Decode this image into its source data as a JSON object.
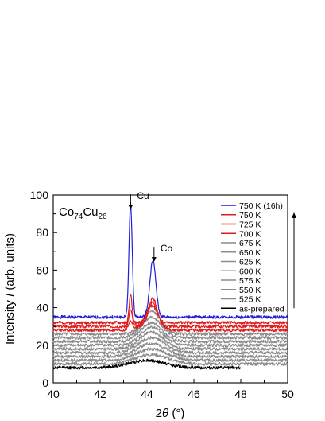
{
  "chart_data": {
    "type": "line",
    "title": "",
    "composition": {
      "el1": "Co",
      "sub1": "74",
      "el2": "Cu",
      "sub2": "26"
    },
    "xlabel_prefix": "2",
    "xlabel_symbol": "θ",
    "xlabel_unit": " (°)",
    "ylabel_prefix": "Intensity ",
    "ylabel_symbol": "I",
    "ylabel_unit": " (arb. units)",
    "xlim": [
      40,
      50
    ],
    "ylim": [
      0,
      100
    ],
    "xticks": [
      40,
      42,
      44,
      46,
      48,
      50
    ],
    "yticks": [
      0,
      20,
      40,
      60,
      80,
      100
    ],
    "grid": false,
    "legend_position": "top-right",
    "legend_arrow": "up",
    "annotations": [
      {
        "text": "Cu",
        "x": 43.3,
        "y": 97
      },
      {
        "text": "Co",
        "x": 44.3,
        "y": 69
      }
    ],
    "series": [
      {
        "name": "750 K (16h)",
        "color": "#1f1fd8",
        "offset": 35,
        "peaks": [
          [
            43.3,
            60,
            0.07
          ],
          [
            44.25,
            30,
            0.13
          ]
        ],
        "x_end": 50,
        "noise_seed": 1
      },
      {
        "name": "750 K",
        "color": "#e01b1b",
        "offset": 32,
        "peaks": [
          [
            43.3,
            15,
            0.06
          ],
          [
            44.25,
            13,
            0.16
          ]
        ],
        "x_end": 50,
        "noise_seed": 2
      },
      {
        "name": "725 K",
        "color": "#e01b1b",
        "offset": 30,
        "peaks": [
          [
            43.3,
            9,
            0.07
          ],
          [
            44.25,
            13,
            0.2
          ]
        ],
        "x_end": 50,
        "noise_seed": 3
      },
      {
        "name": "700 K",
        "color": "#e01b1b",
        "offset": 28,
        "peaks": [
          [
            43.3,
            5,
            0.09
          ],
          [
            44.2,
            13,
            0.28
          ]
        ],
        "x_end": 50,
        "noise_seed": 4
      },
      {
        "name": "675 K",
        "color": "#8c8c8c",
        "offset": 26,
        "peaks": [
          [
            44.2,
            12,
            0.38
          ]
        ],
        "x_end": 50,
        "noise_seed": 5
      },
      {
        "name": "650 K",
        "color": "#8c8c8c",
        "offset": 24,
        "peaks": [
          [
            44.2,
            11,
            0.42
          ]
        ],
        "x_end": 50,
        "noise_seed": 6
      },
      {
        "name": "625 K",
        "color": "#8c8c8c",
        "offset": 22,
        "peaks": [
          [
            44.2,
            10,
            0.45
          ]
        ],
        "x_end": 50,
        "noise_seed": 7
      },
      {
        "name": "600 K",
        "color": "#8c8c8c",
        "offset": 20,
        "peaks": [
          [
            44.2,
            9.5,
            0.48
          ]
        ],
        "x_end": 50,
        "noise_seed": 8
      },
      {
        "name": "575 K",
        "color": "#8c8c8c",
        "offset": 18,
        "peaks": [
          [
            44.2,
            9,
            0.5
          ]
        ],
        "x_end": 50,
        "noise_seed": 9
      },
      {
        "name": "550 K",
        "color": "#8c8c8c",
        "offset": 16,
        "peaks": [
          [
            44.2,
            8,
            0.55
          ]
        ],
        "x_end": 50,
        "noise_seed": 10
      },
      {
        "name": "525 K",
        "color": "#8c8c8c",
        "offset": 14,
        "peaks": [
          [
            44.2,
            7,
            0.6
          ]
        ],
        "x_end": 50,
        "noise_seed": 11
      },
      {
        "name": "as-prepared",
        "color": "#000000",
        "offset": 8,
        "peaks": [
          [
            44.0,
            4,
            0.75
          ]
        ],
        "x_end": 48,
        "noise_seed": 12
      }
    ],
    "unlabeled_series": [
      {
        "color": "#8c8c8c",
        "offset": 12,
        "peaks": [
          [
            44.2,
            6,
            0.65
          ]
        ],
        "x_end": 50,
        "noise_seed": 13
      },
      {
        "color": "#8c8c8c",
        "offset": 10,
        "peaks": [
          [
            44.2,
            5,
            0.7
          ]
        ],
        "x_end": 50,
        "noise_seed": 14
      }
    ]
  }
}
